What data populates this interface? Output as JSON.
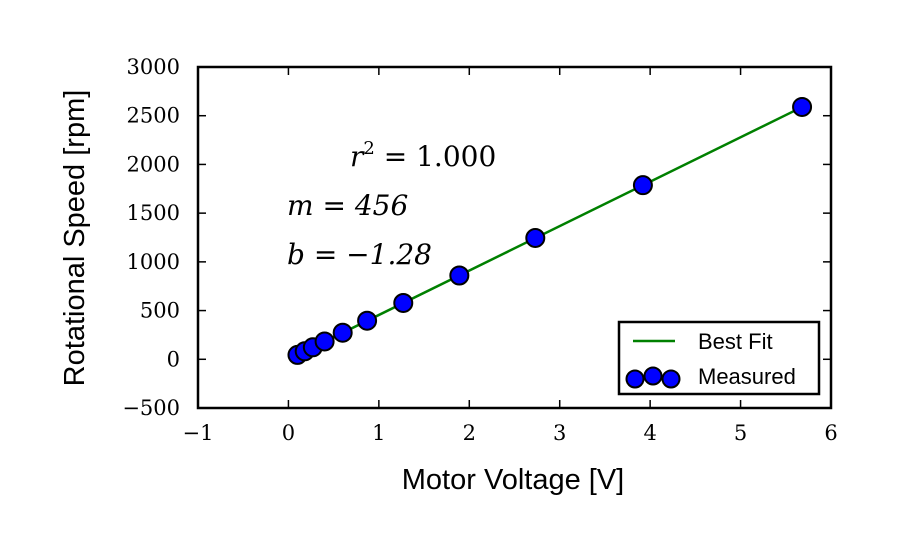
{
  "chart_data": {
    "type": "scatter",
    "xlabel": "Motor Voltage [V]",
    "ylabel": "Rotational Speed [rpm]",
    "xlim": [
      -1,
      6
    ],
    "ylim": [
      -500,
      3000
    ],
    "x_ticks": [
      -1,
      0,
      1,
      2,
      3,
      4,
      5,
      6
    ],
    "y_ticks": [
      -500,
      0,
      500,
      1000,
      1500,
      2000,
      2500,
      3000
    ],
    "x_tick_labels": [
      "−1",
      "0",
      "1",
      "2",
      "3",
      "4",
      "5",
      "6"
    ],
    "y_tick_labels": [
      "−500",
      "0",
      "500",
      "1000",
      "1500",
      "2000",
      "2500",
      "3000"
    ],
    "grid": false,
    "legend_position": "lower-right",
    "series": [
      {
        "name": "Measured",
        "kind": "scatter",
        "color": "#0000ff",
        "x": [
          0.1,
          0.18,
          0.27,
          0.4,
          0.6,
          0.87,
          1.27,
          1.89,
          2.73,
          3.92,
          5.68
        ],
        "y": [
          45,
          82,
          123,
          183,
          273,
          396,
          578,
          860,
          1245,
          1787,
          2590
        ]
      },
      {
        "name": "Best Fit",
        "kind": "line",
        "color": "#008000",
        "x": [
          0.1,
          5.68
        ],
        "y": [
          44.3,
          2588.8
        ]
      }
    ],
    "annotations": [
      {
        "id": "r2",
        "text_prefix": "r",
        "text_sup": "2",
        "text_suffix": " = 1.000"
      },
      {
        "id": "m",
        "text": "m = 456"
      },
      {
        "id": "b",
        "text": "b = −1.28"
      }
    ]
  }
}
